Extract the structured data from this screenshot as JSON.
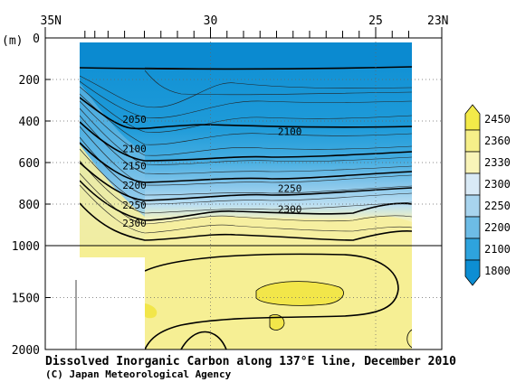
{
  "chart_data": {
    "type": "heatmap",
    "title": "Dissolved Inorganic Carbon along 137°E line, December 2010",
    "copyright": "(C) Japan Meteorological Agency",
    "y_unit_label": "(m)",
    "x_axis": {
      "tick_labels": [
        "35N",
        "30",
        "25",
        "23N"
      ],
      "tick_values": [
        35,
        30,
        25,
        23
      ],
      "range": [
        35,
        23
      ]
    },
    "y_axis": {
      "upper_tick_labels": [
        "0",
        "200",
        "400",
        "600",
        "800",
        "1000"
      ],
      "upper_tick_values": [
        0,
        200,
        400,
        600,
        800,
        1000
      ],
      "lower_tick_labels": [
        "1500",
        "2000"
      ],
      "lower_tick_values": [
        1500,
        2000
      ],
      "range": [
        0,
        2000
      ],
      "scale_break_depth": 1000
    },
    "grid": true,
    "legend": {
      "position": "right",
      "levels": [
        "2450",
        "2360",
        "2330",
        "2300",
        "2250",
        "2200",
        "2100",
        "1800"
      ],
      "colors": [
        "#f3ea49",
        "#f6ef89",
        "#f9f4b8",
        "#d9eaf6",
        "#a8d4ee",
        "#6dbce6",
        "#2ea3dd",
        "#0d8ed3"
      ]
    },
    "contour_labels": [
      {
        "label": "2050",
        "lat": 32.3,
        "depth": 490
      },
      {
        "label": "2100",
        "lat": 32.3,
        "depth": 660
      },
      {
        "label": "2150",
        "lat": 32.3,
        "depth": 760
      },
      {
        "label": "2200",
        "lat": 32.3,
        "depth": 870
      },
      {
        "label": "2250",
        "lat": 32.3,
        "depth": 985
      },
      {
        "label": "2300",
        "lat": 32.3,
        "depth": 1090
      },
      {
        "label": "2100",
        "lat": 27.6,
        "depth": 560
      },
      {
        "label": "2250",
        "lat": 27.6,
        "depth": 890
      },
      {
        "label": "2300",
        "lat": 27.6,
        "depth": 1010
      }
    ],
    "station_latitudes": [
      33.8,
      33.5,
      33.1,
      32.6,
      32.0,
      31.5,
      31.0,
      30.5,
      30.0,
      29.5,
      29.0,
      28.5,
      28.0,
      27.5,
      27.0,
      26.5,
      26.0,
      25.5,
      25.0,
      24.5,
      24.0
    ]
  }
}
